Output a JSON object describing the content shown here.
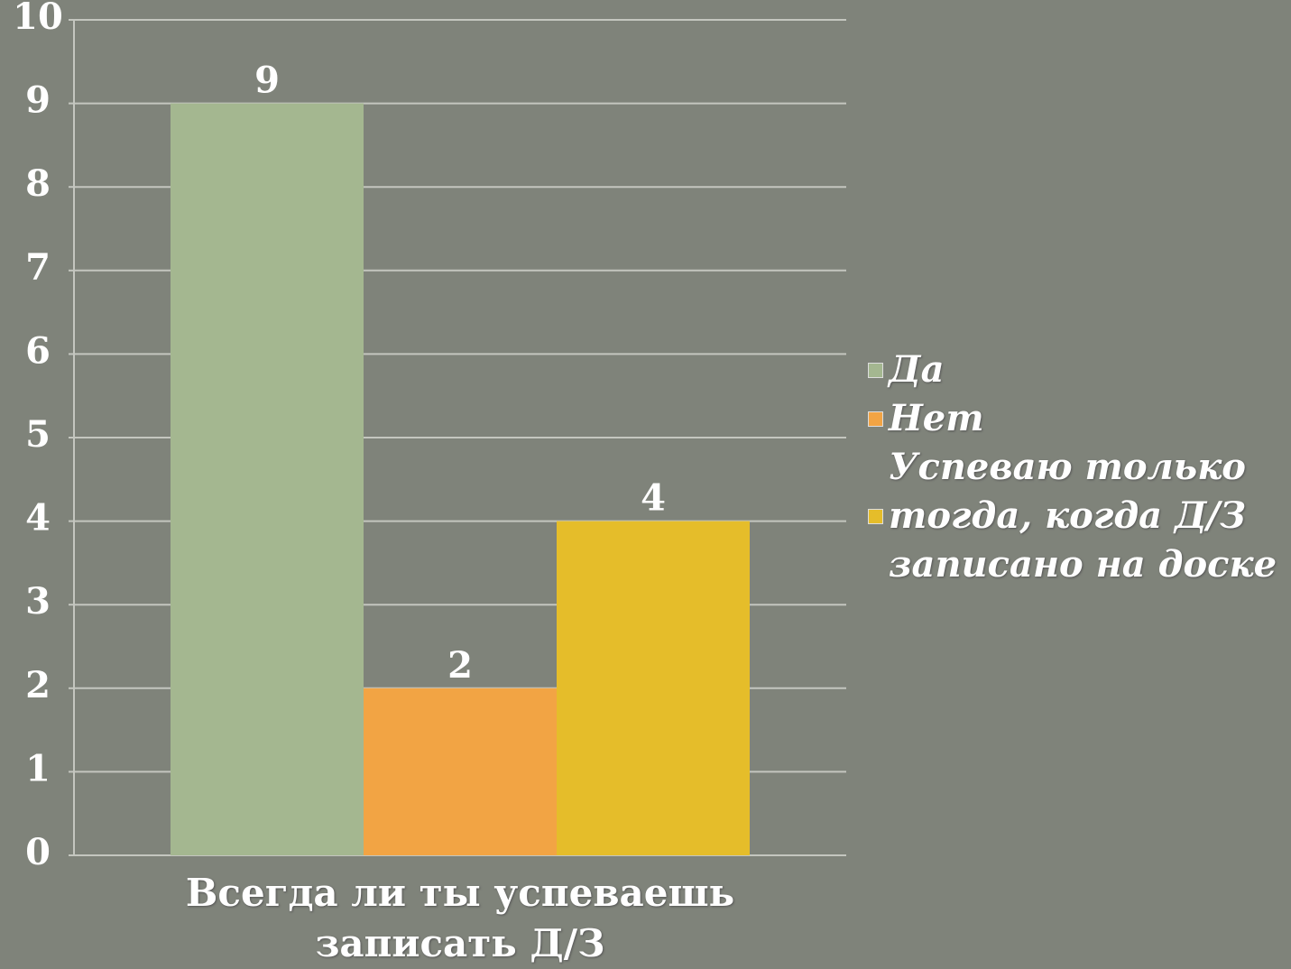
{
  "chart_data": {
    "type": "bar",
    "categories": [
      "Всегда ли ты успеваешь записать Д/З"
    ],
    "series": [
      {
        "name": "Да",
        "color": "#a4b790",
        "values": [
          9
        ]
      },
      {
        "name": "Нет",
        "color": "#f2a444",
        "values": [
          2
        ]
      },
      {
        "name": "Успеваю только тогда, когда Д/З записано на доске",
        "color": "#e5bd2a",
        "values": [
          4
        ]
      }
    ],
    "ylim": [
      0,
      10
    ],
    "yticks": [
      0,
      1,
      2,
      3,
      4,
      5,
      6,
      7,
      8,
      9,
      10
    ],
    "grid": true,
    "legend": "right"
  }
}
